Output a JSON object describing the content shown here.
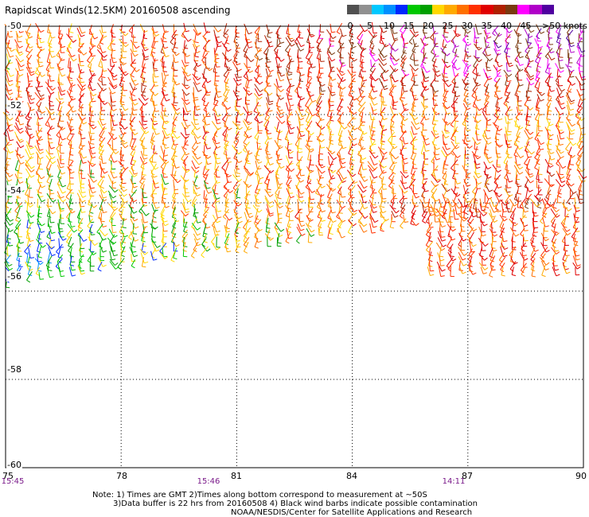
{
  "title": "Rapidscat Winds(12.5KM) 20160508 ascending",
  "scale": {
    "colors": [
      "#505050",
      "#909090",
      "#00c8ff",
      "#0090ff",
      "#0028ff",
      "#00c800",
      "#00a000",
      "#ffd800",
      "#ffaa00",
      "#ff7000",
      "#ff3000",
      "#e00000",
      "#b02000",
      "#7a3a10",
      "#ff00ff",
      "#b000c8",
      "#5000a0"
    ],
    "tick_labels": [
      "0",
      "5",
      "10",
      "15",
      "20",
      "25",
      "30",
      "35",
      "40",
      "45"
    ],
    "unit_label": ">50 knots"
  },
  "axes": {
    "y_labels": [
      "-50",
      "-52",
      "-54",
      "-56",
      "-58",
      "-60"
    ],
    "x_labels": [
      "75",
      "78",
      "81",
      "84",
      "87",
      "90"
    ],
    "time_labels": [
      "15:45",
      "15:46",
      "14:11"
    ]
  },
  "notes": {
    "line1": "Note: 1) Times are GMT 2)Times along bottom correspond to measurement at ~50S",
    "line2": "3)Data buffer is 22 hrs from 20160508 4) Black wind barbs indicate possible contamination",
    "line3": "NOAA/NESDIS/Center for Satellite Applications and Research"
  },
  "chart_data": {
    "type": "map",
    "title": "Rapidscat Winds(12.5KM) 20160508 ascending",
    "x_range": [
      75,
      90
    ],
    "y_range": [
      -50,
      -60
    ],
    "grid": true,
    "swaths": [
      {
        "lon_range": [
          75,
          90
        ],
        "lat_top": -50,
        "lat_bottom_west": -55.8,
        "lat_bottom_east": -53.9
      },
      {
        "lon_range": [
          86,
          90
        ],
        "lat_top": -54,
        "lat_bottom": -55.6
      }
    ],
    "wind_bands": [
      {
        "lat": -50.6,
        "knots_west": 25,
        "knots_east": 45
      },
      {
        "lat": -51.4,
        "knots_west": 30,
        "knots_east": 35
      },
      {
        "lat": -52.3,
        "knots_west": 30,
        "knots_east": 25
      },
      {
        "lat": -53.2,
        "knots_west": 25,
        "knots_east": 30
      },
      {
        "lat": -54.2,
        "knots_west": 20,
        "knots_east": 35
      },
      {
        "lat": -55.2,
        "knots_west": 15,
        "knots_east": 30
      }
    ]
  }
}
